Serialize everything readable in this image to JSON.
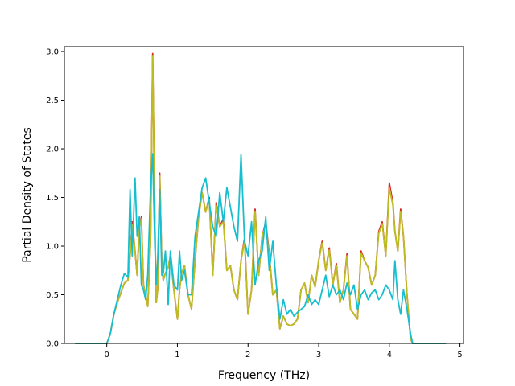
{
  "chart_data": {
    "type": "line",
    "title": "",
    "xlabel": "Frequency (THz)",
    "ylabel": "Partial Density of States",
    "xlim": [
      -0.6,
      5.05
    ],
    "ylim": [
      0.0,
      3.05
    ],
    "xticks": [
      "0",
      "1",
      "2",
      "3",
      "4",
      "5"
    ],
    "yticks": [
      "0.0",
      "0.5",
      "1.0",
      "1.5",
      "2.0",
      "2.5",
      "3.0"
    ],
    "grid": false,
    "legend": "none",
    "colors": [
      "#d62728",
      "#bcbd22",
      "#17becf"
    ],
    "series": [
      {
        "x": [
          -0.45,
          0.0,
          0.05,
          0.1,
          0.15,
          0.2,
          0.25,
          0.3,
          0.33,
          0.36,
          0.4,
          0.43,
          0.46,
          0.49,
          0.52,
          0.55,
          0.58,
          0.62,
          0.65,
          0.68,
          0.7,
          0.72,
          0.75,
          0.78,
          0.8,
          0.83,
          0.87,
          0.9,
          0.95,
          1.0,
          1.03,
          1.06,
          1.1,
          1.15,
          1.2,
          1.25,
          1.3,
          1.35,
          1.4,
          1.45,
          1.5,
          1.55,
          1.6,
          1.65,
          1.7,
          1.75,
          1.8,
          1.85,
          1.9,
          1.95,
          2.0,
          2.05,
          2.1,
          2.15,
          2.2,
          2.25,
          2.3,
          2.35,
          2.4,
          2.45,
          2.5,
          2.55,
          2.6,
          2.65,
          2.7,
          2.75,
          2.8,
          2.85,
          2.9,
          2.95,
          3.0,
          3.05,
          3.1,
          3.15,
          3.2,
          3.25,
          3.3,
          3.35,
          3.4,
          3.45,
          3.5,
          3.55,
          3.6,
          3.65,
          3.7,
          3.75,
          3.8,
          3.85,
          3.9,
          3.95,
          4.0,
          4.05,
          4.08,
          4.12,
          4.16,
          4.2,
          4.25,
          4.3,
          4.33,
          4.36,
          4.4,
          4.45,
          4.5,
          4.8
        ],
        "values": [
          0.0,
          0.0,
          0.1,
          0.3,
          0.42,
          0.52,
          0.62,
          0.65,
          0.9,
          1.25,
          0.95,
          0.7,
          1.2,
          1.3,
          0.6,
          0.5,
          0.38,
          1.05,
          2.98,
          1.3,
          0.42,
          0.55,
          1.75,
          0.8,
          0.65,
          0.72,
          0.78,
          0.9,
          0.55,
          0.25,
          0.55,
          0.72,
          0.8,
          0.5,
          0.35,
          0.85,
          1.3,
          1.55,
          1.35,
          1.5,
          0.7,
          1.45,
          1.2,
          1.28,
          0.75,
          0.8,
          0.55,
          0.45,
          0.85,
          1.08,
          0.3,
          0.55,
          1.38,
          0.7,
          1.1,
          1.25,
          0.92,
          0.5,
          0.55,
          0.15,
          0.28,
          0.2,
          0.18,
          0.2,
          0.25,
          0.55,
          0.62,
          0.42,
          0.7,
          0.58,
          0.85,
          1.05,
          0.75,
          0.98,
          0.6,
          0.82,
          0.42,
          0.55,
          0.92,
          0.35,
          0.3,
          0.25,
          0.95,
          0.85,
          0.78,
          0.6,
          0.7,
          1.15,
          1.25,
          0.9,
          1.65,
          1.45,
          1.15,
          0.95,
          1.38,
          1.1,
          0.5,
          0.05,
          0.0,
          0.0,
          0.0,
          0.0,
          0.0,
          0.0
        ]
      },
      {
        "x": [
          -0.45,
          0.0,
          0.05,
          0.1,
          0.15,
          0.2,
          0.25,
          0.3,
          0.33,
          0.36,
          0.4,
          0.43,
          0.46,
          0.49,
          0.52,
          0.55,
          0.58,
          0.62,
          0.65,
          0.68,
          0.7,
          0.72,
          0.75,
          0.78,
          0.8,
          0.83,
          0.87,
          0.9,
          0.95,
          1.0,
          1.03,
          1.06,
          1.1,
          1.15,
          1.2,
          1.25,
          1.3,
          1.35,
          1.4,
          1.45,
          1.5,
          1.55,
          1.6,
          1.65,
          1.7,
          1.75,
          1.8,
          1.85,
          1.9,
          1.95,
          2.0,
          2.05,
          2.1,
          2.15,
          2.2,
          2.25,
          2.3,
          2.35,
          2.4,
          2.45,
          2.5,
          2.55,
          2.6,
          2.65,
          2.7,
          2.75,
          2.8,
          2.85,
          2.9,
          2.95,
          3.0,
          3.05,
          3.1,
          3.15,
          3.2,
          3.25,
          3.3,
          3.35,
          3.4,
          3.45,
          3.5,
          3.55,
          3.6,
          3.65,
          3.7,
          3.75,
          3.8,
          3.85,
          3.9,
          3.95,
          4.0,
          4.05,
          4.08,
          4.12,
          4.16,
          4.2,
          4.25,
          4.3,
          4.33,
          4.36,
          4.4,
          4.45,
          4.5,
          4.8
        ],
        "values": [
          0.0,
          0.0,
          0.1,
          0.3,
          0.42,
          0.52,
          0.62,
          0.65,
          0.9,
          1.22,
          0.95,
          0.7,
          1.18,
          1.28,
          0.6,
          0.5,
          0.38,
          1.05,
          2.95,
          1.3,
          0.42,
          0.55,
          1.72,
          0.8,
          0.65,
          0.72,
          0.78,
          0.9,
          0.55,
          0.25,
          0.55,
          0.72,
          0.8,
          0.5,
          0.35,
          0.85,
          1.3,
          1.55,
          1.35,
          1.48,
          0.7,
          1.42,
          1.2,
          1.25,
          0.75,
          0.8,
          0.55,
          0.45,
          0.85,
          1.05,
          0.3,
          0.55,
          1.35,
          0.7,
          1.1,
          1.22,
          0.9,
          0.5,
          0.55,
          0.15,
          0.28,
          0.2,
          0.18,
          0.2,
          0.25,
          0.55,
          0.62,
          0.42,
          0.7,
          0.58,
          0.85,
          1.03,
          0.75,
          0.96,
          0.6,
          0.8,
          0.42,
          0.55,
          0.9,
          0.35,
          0.3,
          0.25,
          0.93,
          0.85,
          0.78,
          0.6,
          0.7,
          1.13,
          1.23,
          0.9,
          1.6,
          1.42,
          1.15,
          0.95,
          1.35,
          1.1,
          0.5,
          0.05,
          0.0,
          0.0,
          0.0,
          0.0,
          0.0,
          0.0
        ]
      },
      {
        "x": [
          -0.45,
          0.0,
          0.05,
          0.1,
          0.15,
          0.2,
          0.25,
          0.3,
          0.33,
          0.36,
          0.4,
          0.43,
          0.46,
          0.49,
          0.52,
          0.55,
          0.58,
          0.62,
          0.65,
          0.68,
          0.7,
          0.72,
          0.75,
          0.78,
          0.8,
          0.83,
          0.87,
          0.9,
          0.95,
          1.0,
          1.03,
          1.06,
          1.1,
          1.15,
          1.2,
          1.25,
          1.3,
          1.35,
          1.4,
          1.45,
          1.5,
          1.55,
          1.6,
          1.65,
          1.7,
          1.75,
          1.8,
          1.85,
          1.9,
          1.95,
          2.0,
          2.05,
          2.1,
          2.15,
          2.2,
          2.25,
          2.3,
          2.35,
          2.4,
          2.45,
          2.5,
          2.55,
          2.6,
          2.65,
          2.7,
          2.75,
          2.8,
          2.85,
          2.9,
          2.95,
          3.0,
          3.05,
          3.1,
          3.15,
          3.2,
          3.25,
          3.3,
          3.35,
          3.4,
          3.45,
          3.5,
          3.55,
          3.6,
          3.65,
          3.7,
          3.75,
          3.8,
          3.85,
          3.9,
          3.95,
          4.0,
          4.05,
          4.08,
          4.12,
          4.16,
          4.2,
          4.25,
          4.3,
          4.33,
          4.36,
          4.4,
          4.45,
          4.5,
          4.8
        ],
        "values": [
          0.0,
          0.0,
          0.1,
          0.3,
          0.45,
          0.6,
          0.72,
          0.68,
          1.58,
          0.9,
          1.7,
          1.1,
          1.3,
          0.6,
          0.55,
          0.45,
          0.7,
          1.6,
          1.95,
          1.0,
          0.6,
          0.85,
          1.58,
          0.7,
          0.72,
          0.95,
          0.4,
          0.95,
          0.6,
          0.55,
          0.95,
          0.65,
          0.75,
          0.5,
          0.5,
          1.1,
          1.35,
          1.6,
          1.7,
          1.45,
          1.2,
          1.1,
          1.55,
          1.25,
          1.6,
          1.4,
          1.2,
          1.05,
          1.94,
          1.05,
          0.9,
          1.25,
          0.6,
          0.85,
          0.95,
          1.3,
          0.75,
          1.05,
          0.6,
          0.25,
          0.45,
          0.3,
          0.35,
          0.28,
          0.32,
          0.35,
          0.38,
          0.5,
          0.4,
          0.45,
          0.4,
          0.55,
          0.7,
          0.48,
          0.6,
          0.5,
          0.55,
          0.45,
          0.62,
          0.5,
          0.6,
          0.35,
          0.5,
          0.55,
          0.45,
          0.52,
          0.55,
          0.45,
          0.5,
          0.6,
          0.55,
          0.45,
          0.85,
          0.45,
          0.3,
          0.55,
          0.35,
          0.1,
          0.0,
          0.0,
          0.0,
          0.0,
          0.0,
          0.0
        ]
      }
    ]
  }
}
